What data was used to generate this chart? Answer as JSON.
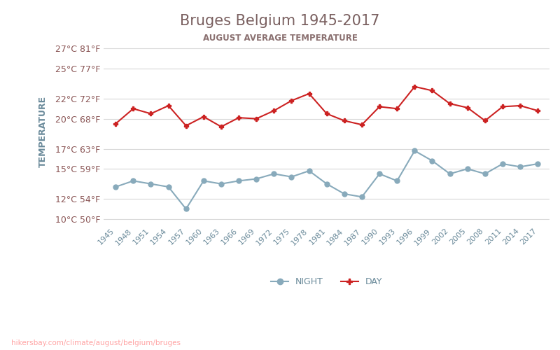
{
  "title": "Bruges Belgium 1945-2017",
  "subtitle": "AUGUST AVERAGE TEMPERATURE",
  "ylabel": "TEMPERATURE",
  "watermark": "hikersbay.com/climate/august/belgium/bruges",
  "title_color": "#7a6060",
  "subtitle_color": "#8a7070",
  "ylabel_color": "#6a8a9a",
  "ytick_color": "#8a5555",
  "xtick_color": "#6a8a9a",
  "background_color": "#ffffff",
  "grid_color": "#d8d8d8",
  "day_color": "#cc2222",
  "night_color": "#88aabb",
  "years": [
    1945,
    1948,
    1951,
    1954,
    1957,
    1960,
    1963,
    1966,
    1969,
    1972,
    1975,
    1978,
    1981,
    1984,
    1987,
    1990,
    1993,
    1996,
    1999,
    2002,
    2005,
    2008,
    2011,
    2014,
    2017
  ],
  "day_temps": [
    19.5,
    21.0,
    20.5,
    21.3,
    19.3,
    20.2,
    19.2,
    20.1,
    20.0,
    20.8,
    21.8,
    22.5,
    20.5,
    19.8,
    19.4,
    21.2,
    21.0,
    23.2,
    22.8,
    21.5,
    21.1,
    19.8,
    21.2,
    21.3,
    20.8
  ],
  "night_temps": [
    13.2,
    13.8,
    13.5,
    13.2,
    11.0,
    13.8,
    13.5,
    13.8,
    14.0,
    14.5,
    14.2,
    14.8,
    13.5,
    12.5,
    12.2,
    14.5,
    13.8,
    16.8,
    15.8,
    14.5,
    15.0,
    14.5,
    15.5,
    15.2,
    15.5
  ],
  "ylim": [
    9.5,
    28.0
  ],
  "yticks_c": [
    10,
    12,
    15,
    17,
    20,
    22,
    25,
    27
  ],
  "yticks_f": [
    50,
    54,
    59,
    63,
    68,
    72,
    77,
    81
  ]
}
